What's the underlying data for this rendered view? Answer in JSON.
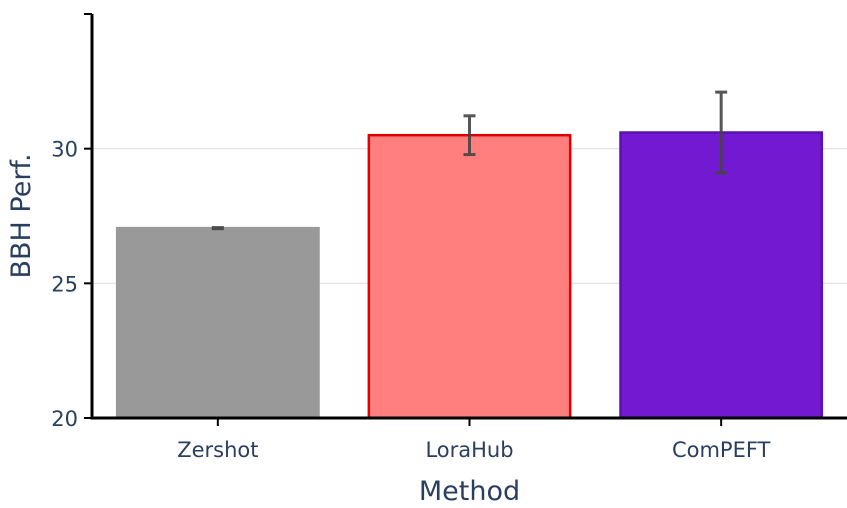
{
  "chart_data": {
    "type": "bar",
    "categories": [
      "Zershot",
      "LoraHub",
      "ComPEFT"
    ],
    "values": [
      27.05,
      30.5,
      30.6
    ],
    "error_bars": [
      0.02,
      0.72,
      1.5
    ],
    "xlabel": "Method",
    "ylabel": "BBH Perf.",
    "ylim": [
      20,
      35
    ],
    "yticks": [
      20,
      25,
      30
    ],
    "grid": "y",
    "colors": {
      "fills": [
        "#999999",
        "#ff7f7f",
        "#7419d2"
      ],
      "strokes": [
        "#999999",
        "#e00000",
        "#5c10b0"
      ],
      "error_bar": "#444444",
      "axis": "#000000",
      "grid": "#e6e6e6",
      "text": "#2a3f5f"
    }
  }
}
